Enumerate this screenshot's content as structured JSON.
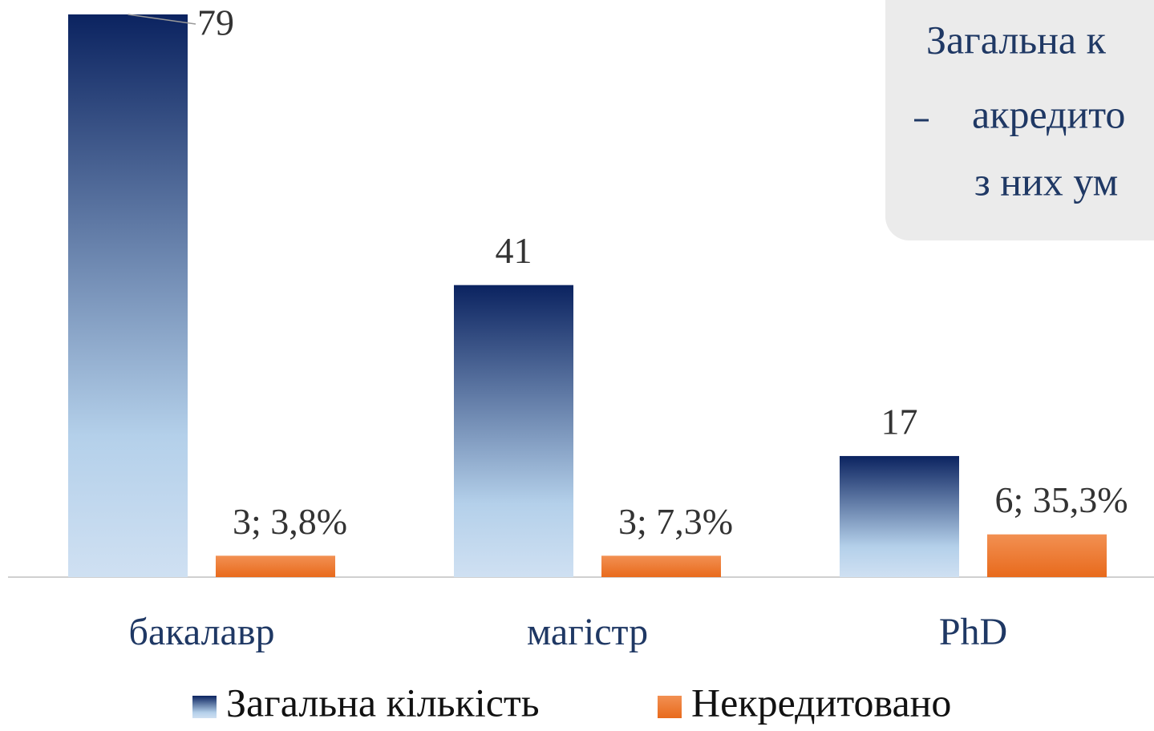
{
  "chart_data": {
    "type": "bar",
    "categories": [
      "бакалавр",
      "магістр",
      "PhD"
    ],
    "series": [
      {
        "name": "Загальна кількість",
        "color": "#0b2360",
        "values": [
          79,
          41,
          17
        ]
      },
      {
        "name": "Некредитовано",
        "color": "#ed7d31",
        "values": [
          3,
          3,
          6
        ],
        "value_labels": [
          "3; 3,8%",
          "3; 7,3%",
          "6; 35,3%"
        ]
      }
    ],
    "legend": "bottom",
    "annotation": [
      "Загальна к",
      "акредито",
      "з них ум"
    ]
  }
}
